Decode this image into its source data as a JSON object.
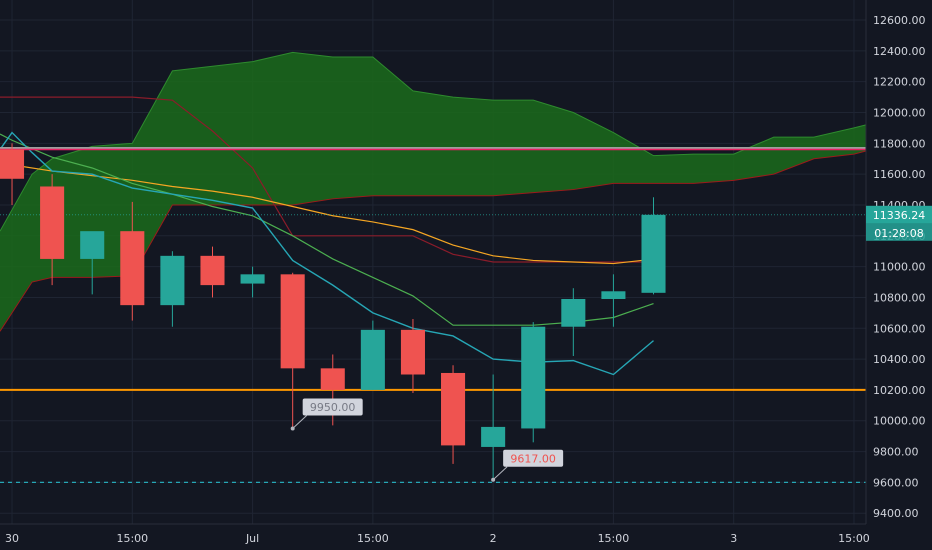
{
  "chart_data": {
    "type": "candlestick",
    "colors": {
      "background": "#131722",
      "grid": "#1f2533",
      "up": "#26a69a",
      "down": "#ef5350",
      "cloud_fill": "#1b6b1b",
      "cloud_upper_line": "#2e8b2e",
      "cloud_lower_line": "#9b1b1b",
      "sma_orange": "#f5a623",
      "sma_green": "#4caf50",
      "sma_cyan": "#26a6b5",
      "red_line": "#8b1c2a",
      "magenta_line": "#e91e63",
      "grey_line": "#9e9e9e",
      "hline_orange": "#ff9800",
      "hline_dashed": "#26a6b5",
      "price_tag": "#26a69a",
      "axis_text": "#d1d4dc"
    },
    "y_axis": {
      "ylim": [
        9330,
        12730
      ],
      "ticks": [
        "12600.00",
        "12400.00",
        "12200.00",
        "12000.00",
        "11800.00",
        "11600.00",
        "11400.00",
        "11200.00",
        "11000.00",
        "10800.00",
        "10600.00",
        "10400.00",
        "10200.00",
        "10000.00",
        "9800.00",
        "9600.00",
        "9400.00"
      ]
    },
    "x_axis": {
      "xlim": [
        -0.3,
        21.3
      ],
      "tick_labels": [
        "30",
        "15:00",
        "Jul",
        "15:00",
        "2",
        "15:00",
        "3",
        "15:00"
      ],
      "tick_positions": [
        0,
        3,
        6,
        9,
        12,
        15,
        18,
        21
      ]
    },
    "candles": [
      {
        "o": 11760,
        "h": 11800,
        "l": 11400,
        "c": 11570
      },
      {
        "o": 11520,
        "h": 11600,
        "l": 10880,
        "c": 11050
      },
      {
        "o": 11050,
        "h": 11220,
        "l": 10820,
        "c": 11230
      },
      {
        "o": 11230,
        "h": 11420,
        "l": 10650,
        "c": 10750
      },
      {
        "o": 10750,
        "h": 11100,
        "l": 10610,
        "c": 11070
      },
      {
        "o": 11070,
        "h": 11130,
        "l": 10800,
        "c": 10880
      },
      {
        "o": 10890,
        "h": 11000,
        "l": 10800,
        "c": 10950
      },
      {
        "o": 10950,
        "h": 10960,
        "l": 9950,
        "c": 10340
      },
      {
        "o": 10340,
        "h": 10430,
        "l": 9970,
        "c": 10200
      },
      {
        "o": 10200,
        "h": 10650,
        "l": 10200,
        "c": 10590
      },
      {
        "o": 10590,
        "h": 10660,
        "l": 10180,
        "c": 10300
      },
      {
        "o": 10310,
        "h": 10360,
        "l": 9720,
        "c": 9840
      },
      {
        "o": 9830,
        "h": 10300,
        "l": 9617,
        "c": 9960
      },
      {
        "o": 9950,
        "h": 10640,
        "l": 9860,
        "c": 10610
      },
      {
        "o": 10610,
        "h": 10860,
        "l": 10420,
        "c": 10790
      },
      {
        "o": 10790,
        "h": 10950,
        "l": 10610,
        "c": 10840
      },
      {
        "o": 10830,
        "h": 11450,
        "l": 10820,
        "c": 11336.24
      }
    ],
    "cloud": {
      "x": [
        -0.3,
        0.5,
        1,
        2,
        3,
        4,
        5,
        6,
        7,
        8,
        9,
        10,
        11,
        12,
        13,
        14,
        15,
        16,
        17,
        18,
        19,
        20,
        21,
        21.3
      ],
      "upper": [
        11230,
        11600,
        11700,
        11780,
        11800,
        12270,
        12300,
        12330,
        12390,
        12360,
        12360,
        12140,
        12100,
        12080,
        12080,
        12000,
        11870,
        11720,
        11730,
        11730,
        11840,
        11840,
        11900,
        11920
      ],
      "lower": [
        10580,
        10900,
        10930,
        10930,
        10940,
        11400,
        11400,
        11400,
        11400,
        11440,
        11460,
        11460,
        11460,
        11460,
        11480,
        11500,
        11540,
        11540,
        11540,
        11560,
        11600,
        11700,
        11730,
        11750
      ]
    },
    "red_line": {
      "x": [
        -0.3,
        3,
        4,
        5,
        6,
        7,
        8,
        9,
        10,
        11,
        12,
        13,
        14,
        15,
        16
      ],
      "y": [
        12100,
        12100,
        12080,
        11880,
        11640,
        11200,
        11200,
        11200,
        11200,
        11080,
        11030,
        11030,
        11030,
        11030,
        11030
      ]
    },
    "sma_orange": {
      "x": [
        -0.3,
        0,
        1,
        2,
        3,
        4,
        5,
        6,
        7,
        8,
        9,
        10,
        11,
        12,
        13,
        14,
        15,
        15.7
      ],
      "y": [
        11670,
        11660,
        11620,
        11590,
        11560,
        11520,
        11490,
        11450,
        11390,
        11330,
        11290,
        11240,
        11140,
        11070,
        11040,
        11030,
        11020,
        11040
      ]
    },
    "sma_green": {
      "x": [
        -0.3,
        0,
        1,
        2,
        3,
        4,
        5,
        6,
        7,
        8,
        9,
        10,
        11,
        12,
        13,
        14,
        15,
        16
      ],
      "y": [
        11860,
        11820,
        11710,
        11640,
        11540,
        11470,
        11390,
        11330,
        11200,
        11050,
        10930,
        10810,
        10620,
        10620,
        10620,
        10640,
        10670,
        10760
      ]
    },
    "sma_cyan": {
      "x": [
        -0.3,
        0,
        0.5,
        1,
        2,
        3,
        4,
        5,
        6,
        7,
        8,
        9,
        10,
        11,
        12,
        13,
        14,
        15,
        16
      ],
      "y": [
        11760,
        11870,
        11740,
        11620,
        11600,
        11510,
        11470,
        11430,
        11380,
        11040,
        10880,
        10700,
        10600,
        10550,
        10400,
        10380,
        10390,
        10300,
        10520
      ]
    },
    "h_magenta": 11760,
    "h_grey": 11770,
    "h_orange": 10200,
    "h_dashed": 9600,
    "current_price_line": 11336.24,
    "price_label": "11336.24",
    "countdown_label": "01:28:08",
    "annotations": [
      {
        "text": "9950.00",
        "anchor_x": 7,
        "anchor_y": 9950,
        "color": "#787b86"
      },
      {
        "text": "9617.00",
        "anchor_x": 12,
        "anchor_y": 9617,
        "color": "#ef5350"
      }
    ]
  }
}
